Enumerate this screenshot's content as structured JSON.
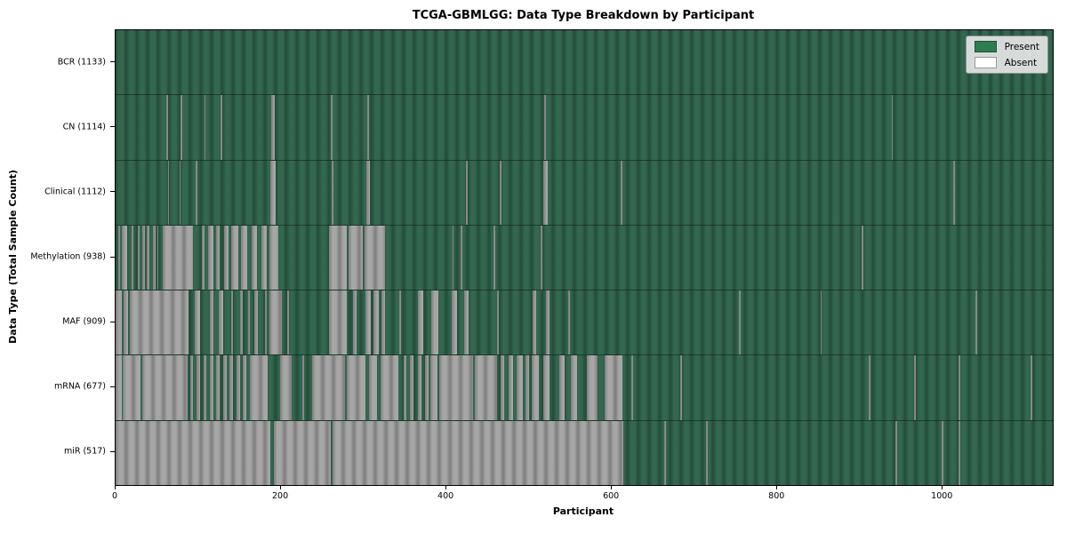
{
  "chart_data": {
    "type": "heatmap",
    "title": "TCGA-GBMLGG: Data Type Breakdown by Participant",
    "xlabel": "Participant",
    "ylabel": "Data Type (Total Sample Count)",
    "x_max": 1133,
    "x_ticks": [
      0,
      200,
      400,
      600,
      800,
      1000
    ],
    "grid": false,
    "legend": {
      "position": "upper right",
      "entries": [
        {
          "label": "Present",
          "color": "#2e7d4f",
          "edge": "#1f5137"
        },
        {
          "label": "Absent",
          "color": "#ffffff",
          "edge": "#999999"
        }
      ]
    },
    "colors": {
      "present_light": "#346750",
      "present_dark": "#224d39",
      "absent_light": "#a6a6a6",
      "absent_dark": "#7d7d7d"
    },
    "rows": [
      {
        "name": "BCR",
        "label": "BCR (1133)",
        "count": 1133,
        "absent_segments": []
      },
      {
        "name": "CN",
        "label": "CN (1114)",
        "count": 1114,
        "absent_segments": [
          [
            61,
            63
          ],
          [
            79,
            81
          ],
          [
            107,
            109
          ],
          [
            127,
            129
          ],
          [
            188,
            192
          ],
          [
            260,
            262
          ],
          [
            304,
            306
          ],
          [
            518,
            520
          ],
          [
            938,
            940
          ]
        ]
      },
      {
        "name": "Clinical",
        "label": "Clinical (1112)",
        "count": 1112,
        "absent_segments": [
          [
            63,
            65
          ],
          [
            77,
            79
          ],
          [
            97,
            99
          ],
          [
            187,
            193
          ],
          [
            261,
            263
          ],
          [
            303,
            307
          ],
          [
            424,
            426
          ],
          [
            464,
            466
          ],
          [
            517,
            522
          ],
          [
            611,
            613
          ],
          [
            1013,
            1015
          ]
        ]
      },
      {
        "name": "Methylation",
        "label": "Methylation (938)",
        "count": 938,
        "absent_segments": [
          [
            3,
            5
          ],
          [
            7,
            14
          ],
          [
            19,
            21
          ],
          [
            27,
            29
          ],
          [
            32,
            36
          ],
          [
            38,
            41
          ],
          [
            45,
            48
          ],
          [
            50,
            52
          ],
          [
            57,
            94
          ],
          [
            104,
            108
          ],
          [
            112,
            118
          ],
          [
            122,
            126
          ],
          [
            131,
            136
          ],
          [
            140,
            148
          ],
          [
            152,
            159
          ],
          [
            164,
            171
          ],
          [
            176,
            183
          ],
          [
            186,
            197
          ],
          [
            258,
            280
          ],
          [
            282,
            299
          ],
          [
            301,
            326
          ],
          [
            407,
            409
          ],
          [
            417,
            419
          ],
          [
            457,
            459
          ],
          [
            514,
            516
          ],
          [
            902,
            904
          ]
        ]
      },
      {
        "name": "MAF",
        "label": "MAF (909)",
        "count": 909,
        "absent_segments": [
          [
            0,
            8
          ],
          [
            10,
            15
          ],
          [
            17,
            88
          ],
          [
            96,
            102
          ],
          [
            114,
            118
          ],
          [
            125,
            130
          ],
          [
            140,
            142
          ],
          [
            150,
            154
          ],
          [
            160,
            162
          ],
          [
            168,
            172
          ],
          [
            181,
            183
          ],
          [
            186,
            201
          ],
          [
            208,
            210
          ],
          [
            258,
            280
          ],
          [
            287,
            291
          ],
          [
            302,
            308
          ],
          [
            312,
            318
          ],
          [
            321,
            326
          ],
          [
            343,
            345
          ],
          [
            365,
            372
          ],
          [
            382,
            390
          ],
          [
            406,
            413
          ],
          [
            421,
            427
          ],
          [
            461,
            463
          ],
          [
            504,
            509
          ],
          [
            520,
            525
          ],
          [
            547,
            549
          ],
          [
            754,
            756
          ],
          [
            852,
            854
          ],
          [
            1040,
            1042
          ]
        ]
      },
      {
        "name": "mRNA",
        "label": "mRNA (677)",
        "count": 677,
        "absent_segments": [
          [
            0,
            7
          ],
          [
            9,
            30
          ],
          [
            32,
            87
          ],
          [
            90,
            94
          ],
          [
            98,
            102
          ],
          [
            106,
            110
          ],
          [
            114,
            118
          ],
          [
            122,
            126
          ],
          [
            130,
            134
          ],
          [
            138,
            142
          ],
          [
            146,
            150
          ],
          [
            154,
            158
          ],
          [
            162,
            184
          ],
          [
            199,
            213
          ],
          [
            226,
            228
          ],
          [
            238,
            277
          ],
          [
            280,
            302
          ],
          [
            306,
            316
          ],
          [
            320,
            342
          ],
          [
            348,
            352
          ],
          [
            356,
            360
          ],
          [
            365,
            370
          ],
          [
            374,
            378
          ],
          [
            380,
            389
          ],
          [
            391,
            432
          ],
          [
            434,
            461
          ],
          [
            465,
            470
          ],
          [
            475,
            480
          ],
          [
            485,
            492
          ],
          [
            496,
            500
          ],
          [
            503,
            512
          ],
          [
            517,
            525
          ],
          [
            536,
            543
          ],
          [
            550,
            558
          ],
          [
            570,
            583
          ],
          [
            591,
            613
          ],
          [
            624,
            626
          ],
          [
            683,
            685
          ],
          [
            911,
            913
          ],
          [
            965,
            967
          ],
          [
            1019,
            1021
          ],
          [
            1106,
            1108
          ]
        ]
      },
      {
        "name": "miR",
        "label": "miR (517)",
        "count": 517,
        "absent_segments": [
          [
            0,
            187
          ],
          [
            191,
            260
          ],
          [
            262,
            614
          ],
          [
            663,
            665
          ],
          [
            714,
            716
          ],
          [
            943,
            945
          ],
          [
            999,
            1001
          ],
          [
            1019,
            1021
          ]
        ]
      }
    ]
  }
}
